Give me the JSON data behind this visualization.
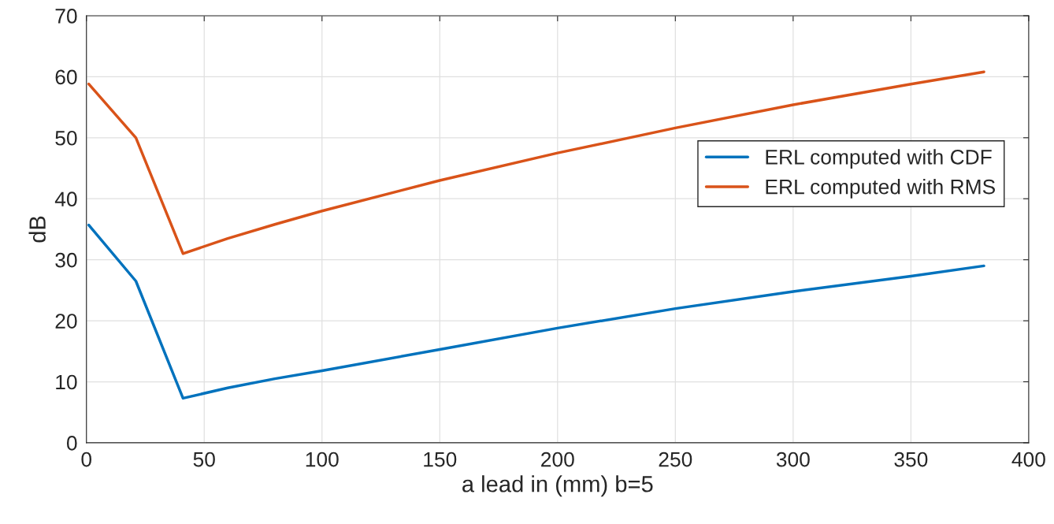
{
  "chart_data": {
    "type": "line",
    "xlabel": "a lead in (mm) b=5",
    "ylabel": "dB",
    "xlim": [
      0,
      400
    ],
    "xticks": [
      0,
      50,
      100,
      150,
      200,
      250,
      300,
      350,
      400
    ],
    "ylim": [
      0,
      70
    ],
    "yticks": [
      0,
      10,
      20,
      30,
      40,
      50,
      60,
      70
    ],
    "grid": true,
    "legend": "center right",
    "series": [
      {
        "name": "ERL computed with CDF",
        "color": "#0072bd",
        "x": [
          1,
          21,
          41,
          60,
          80,
          100,
          150,
          200,
          250,
          300,
          350,
          381
        ],
        "values": [
          35.7,
          26.5,
          7.3,
          9.0,
          10.5,
          11.8,
          15.3,
          18.8,
          22.0,
          24.8,
          27.3,
          29.0
        ]
      },
      {
        "name": "ERL computed with RMS",
        "color": "#d95319",
        "x": [
          1,
          21,
          41,
          60,
          80,
          100,
          150,
          200,
          250,
          300,
          350,
          381
        ],
        "values": [
          58.8,
          50.0,
          31.0,
          33.5,
          35.8,
          38.0,
          43.0,
          47.5,
          51.6,
          55.4,
          58.8,
          60.8
        ]
      }
    ]
  }
}
